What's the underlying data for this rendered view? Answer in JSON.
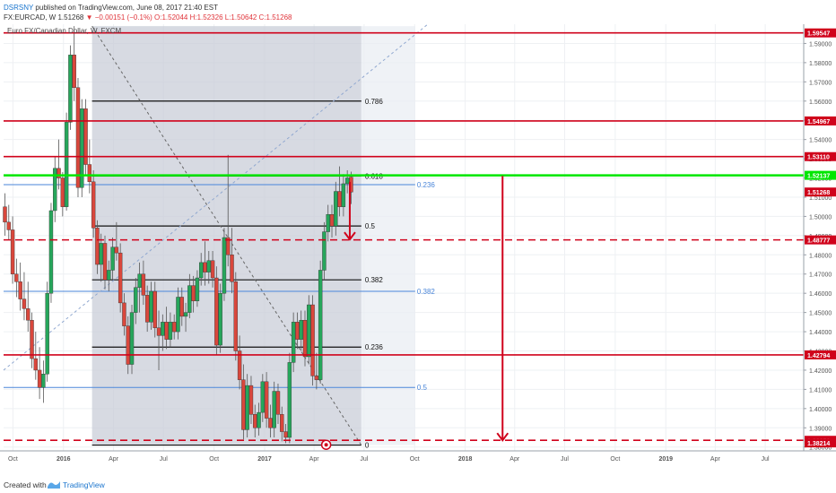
{
  "header": {
    "author": "DSRSNY",
    "published": " published on TradingView.com, June 08, 2017 21:40 EST",
    "symbol": "FX:EURCAD, W",
    "last": " 1.51268",
    "change": " −0.00151 (−0.1%)",
    "ohlc": " O:1.52044 H:1.52326 L:1.50642 C:1.51268"
  },
  "footer": {
    "created_with": "Created with",
    "brand": "TradingView"
  },
  "chart_data": {
    "type": "candlestick",
    "title": "Euro FX/Canadian Dollar, W, FXCM",
    "timeframe": "W",
    "x_range": [
      "2015-09-14",
      "2019-09-09"
    ],
    "ylim": [
      1.378,
      1.6
    ],
    "y_ticks": [
      1.38,
      1.39,
      1.4,
      1.41,
      1.42,
      1.43,
      1.44,
      1.45,
      1.46,
      1.47,
      1.48,
      1.49,
      1.5,
      1.51,
      1.52,
      1.53,
      1.54,
      1.55,
      1.56,
      1.57,
      1.58,
      1.59
    ],
    "x_ticks": [
      {
        "date": "2015-10-01",
        "label": "Oct",
        "bold": false
      },
      {
        "date": "2016-01-01",
        "label": "2016",
        "bold": true
      },
      {
        "date": "2016-04-01",
        "label": "Apr",
        "bold": false
      },
      {
        "date": "2016-07-01",
        "label": "Jul",
        "bold": false
      },
      {
        "date": "2016-10-01",
        "label": "Oct",
        "bold": false
      },
      {
        "date": "2017-01-01",
        "label": "2017",
        "bold": true
      },
      {
        "date": "2017-04-01",
        "label": "Apr",
        "bold": false
      },
      {
        "date": "2017-07-01",
        "label": "Jul",
        "bold": false
      },
      {
        "date": "2017-10-01",
        "label": "Oct",
        "bold": false
      },
      {
        "date": "2018-01-01",
        "label": "2018",
        "bold": true
      },
      {
        "date": "2018-04-01",
        "label": "Apr",
        "bold": false
      },
      {
        "date": "2018-07-01",
        "label": "Jul",
        "bold": false
      },
      {
        "date": "2018-10-01",
        "label": "Oct",
        "bold": false
      },
      {
        "date": "2019-01-01",
        "label": "2019",
        "bold": true
      },
      {
        "date": "2019-04-01",
        "label": "Apr",
        "bold": false
      },
      {
        "date": "2019-07-01",
        "label": "Jul",
        "bold": false
      }
    ],
    "price_lines": [
      {
        "price": 1.59547,
        "label": "1.59547",
        "color": "#d0021b",
        "style": "solid",
        "x_from": "2015-09-14"
      },
      {
        "price": 1.54967,
        "label": "1.54967",
        "color": "#d0021b",
        "style": "solid",
        "x_from": "2015-09-14"
      },
      {
        "price": 1.5311,
        "label": "1.53110",
        "color": "#d0021b",
        "style": "solid",
        "x_from": "2015-09-14"
      },
      {
        "price": 1.52137,
        "label": "1.52137",
        "color": "#00e600",
        "style": "solid",
        "x_from": "2015-09-14"
      },
      {
        "price": 1.48777,
        "label": "1.48777",
        "color": "#d0021b",
        "style": "dashed",
        "x_from": "2015-09-14"
      },
      {
        "price": 1.42794,
        "label": "1.42794",
        "color": "#d0021b",
        "style": "solid",
        "x_from": "2015-09-14"
      },
      {
        "price": 1.3835,
        "label": "1.38350",
        "color": "#d0021b",
        "style": "dashed",
        "x_from": "2015-09-14"
      }
    ],
    "price_labels": [
      {
        "price": 1.51268,
        "label": "1.51268",
        "color": "#d0021b"
      },
      {
        "price": 1.38214,
        "label": "1.38214",
        "color": "#d0021b"
      }
    ],
    "fib_black": {
      "start": "2016-02-22",
      "end": "2017-06-26",
      "levels": [
        {
          "price": 1.56,
          "label": "0.786"
        },
        {
          "price": 1.521,
          "label": "0.618"
        },
        {
          "price": 1.495,
          "label": "0.5"
        },
        {
          "price": 1.467,
          "label": "0.382"
        },
        {
          "price": 1.432,
          "label": "0.236"
        },
        {
          "price": 1.381,
          "label": "0"
        }
      ]
    },
    "fib_blue": {
      "start": "2015-09-14",
      "end": "2017-10-02",
      "levels": [
        {
          "price": 1.5165,
          "label": "0.236"
        },
        {
          "price": 1.461,
          "label": "0.382"
        },
        {
          "price": 1.411,
          "label": "0.5"
        }
      ]
    },
    "shaded_regions": [
      {
        "from": "2016-02-22",
        "to": "2017-06-26",
        "ymin": 1.381,
        "ymax": 1.599,
        "color": "#c9ced8"
      },
      {
        "from": "2017-06-26",
        "to": "2017-10-02",
        "ymin": 1.381,
        "ymax": 1.599,
        "color": "#e9edf3"
      }
    ],
    "trend_lines": [
      {
        "from": [
          "2015-09-14",
          1.42
        ],
        "to": [
          "2017-10-25",
          1.6
        ],
        "color": "#90a8d0",
        "style": "dashed"
      },
      {
        "from": [
          "2016-02-22",
          1.599
        ],
        "to": [
          "2017-06-26",
          1.381
        ],
        "color": "#666666",
        "style": "dashed"
      }
    ],
    "arrows": [
      {
        "date": "2017-06-05",
        "from": 1.518,
        "to": 1.488,
        "color": "#d0021b"
      },
      {
        "date": "2018-03-10",
        "from": 1.521,
        "to": 1.3835,
        "color": "#d0021b"
      }
    ],
    "markers": [
      {
        "date": "2017-04-23",
        "price": 1.3835,
        "color": "#d0021b"
      }
    ],
    "candles": [
      {
        "date": "2015-09-14",
        "o": 1.505,
        "h": 1.512,
        "l": 1.49,
        "c": 1.497
      },
      {
        "date": "2015-09-21",
        "o": 1.497,
        "h": 1.506,
        "l": 1.488,
        "c": 1.493
      },
      {
        "date": "2015-09-28",
        "o": 1.493,
        "h": 1.5,
        "l": 1.465,
        "c": 1.47
      },
      {
        "date": "2015-10-05",
        "o": 1.47,
        "h": 1.478,
        "l": 1.458,
        "c": 1.466
      },
      {
        "date": "2015-10-12",
        "o": 1.466,
        "h": 1.476,
        "l": 1.451,
        "c": 1.457
      },
      {
        "date": "2015-10-19",
        "o": 1.457,
        "h": 1.471,
        "l": 1.446,
        "c": 1.452
      },
      {
        "date": "2015-10-26",
        "o": 1.452,
        "h": 1.466,
        "l": 1.44,
        "c": 1.446
      },
      {
        "date": "2015-11-02",
        "o": 1.446,
        "h": 1.45,
        "l": 1.421,
        "c": 1.426
      },
      {
        "date": "2015-11-09",
        "o": 1.426,
        "h": 1.44,
        "l": 1.415,
        "c": 1.42
      },
      {
        "date": "2015-11-16",
        "o": 1.42,
        "h": 1.432,
        "l": 1.405,
        "c": 1.411
      },
      {
        "date": "2015-11-23",
        "o": 1.411,
        "h": 1.425,
        "l": 1.403,
        "c": 1.418
      },
      {
        "date": "2015-11-30",
        "o": 1.418,
        "h": 1.466,
        "l": 1.414,
        "c": 1.46
      },
      {
        "date": "2015-12-07",
        "o": 1.46,
        "h": 1.507,
        "l": 1.455,
        "c": 1.503
      },
      {
        "date": "2015-12-14",
        "o": 1.503,
        "h": 1.531,
        "l": 1.497,
        "c": 1.525
      },
      {
        "date": "2015-12-21",
        "o": 1.525,
        "h": 1.54,
        "l": 1.514,
        "c": 1.52
      },
      {
        "date": "2015-12-28",
        "o": 1.52,
        "h": 1.523,
        "l": 1.5,
        "c": 1.505
      },
      {
        "date": "2016-01-04",
        "o": 1.505,
        "h": 1.554,
        "l": 1.503,
        "c": 1.549
      },
      {
        "date": "2016-01-11",
        "o": 1.549,
        "h": 1.589,
        "l": 1.545,
        "c": 1.584
      },
      {
        "date": "2016-01-18",
        "o": 1.584,
        "h": 1.599,
        "l": 1.56,
        "c": 1.567
      },
      {
        "date": "2016-01-25",
        "o": 1.567,
        "h": 1.572,
        "l": 1.51,
        "c": 1.515
      },
      {
        "date": "2016-02-01",
        "o": 1.515,
        "h": 1.561,
        "l": 1.51,
        "c": 1.556
      },
      {
        "date": "2016-02-08",
        "o": 1.556,
        "h": 1.561,
        "l": 1.521,
        "c": 1.527
      },
      {
        "date": "2016-02-15",
        "o": 1.527,
        "h": 1.54,
        "l": 1.512,
        "c": 1.518
      },
      {
        "date": "2016-02-22",
        "o": 1.518,
        "h": 1.524,
        "l": 1.489,
        "c": 1.494
      },
      {
        "date": "2016-02-29",
        "o": 1.494,
        "h": 1.498,
        "l": 1.47,
        "c": 1.475
      },
      {
        "date": "2016-03-07",
        "o": 1.475,
        "h": 1.491,
        "l": 1.466,
        "c": 1.486
      },
      {
        "date": "2016-03-14",
        "o": 1.486,
        "h": 1.49,
        "l": 1.462,
        "c": 1.467
      },
      {
        "date": "2016-03-21",
        "o": 1.467,
        "h": 1.477,
        "l": 1.461,
        "c": 1.472
      },
      {
        "date": "2016-03-28",
        "o": 1.472,
        "h": 1.489,
        "l": 1.467,
        "c": 1.484
      },
      {
        "date": "2016-04-04",
        "o": 1.484,
        "h": 1.497,
        "l": 1.477,
        "c": 1.481
      },
      {
        "date": "2016-04-11",
        "o": 1.481,
        "h": 1.486,
        "l": 1.45,
        "c": 1.455
      },
      {
        "date": "2016-04-18",
        "o": 1.455,
        "h": 1.46,
        "l": 1.438,
        "c": 1.443
      },
      {
        "date": "2016-04-25",
        "o": 1.443,
        "h": 1.448,
        "l": 1.418,
        "c": 1.423
      },
      {
        "date": "2016-05-02",
        "o": 1.423,
        "h": 1.454,
        "l": 1.418,
        "c": 1.45
      },
      {
        "date": "2016-05-09",
        "o": 1.45,
        "h": 1.468,
        "l": 1.444,
        "c": 1.463
      },
      {
        "date": "2016-05-16",
        "o": 1.463,
        "h": 1.476,
        "l": 1.45,
        "c": 1.47
      },
      {
        "date": "2016-05-23",
        "o": 1.47,
        "h": 1.477,
        "l": 1.454,
        "c": 1.459
      },
      {
        "date": "2016-05-30",
        "o": 1.459,
        "h": 1.464,
        "l": 1.44,
        "c": 1.445
      },
      {
        "date": "2016-06-06",
        "o": 1.445,
        "h": 1.466,
        "l": 1.441,
        "c": 1.461
      },
      {
        "date": "2016-06-13",
        "o": 1.461,
        "h": 1.466,
        "l": 1.437,
        "c": 1.442
      },
      {
        "date": "2016-06-20",
        "o": 1.442,
        "h": 1.451,
        "l": 1.42,
        "c": 1.438
      },
      {
        "date": "2016-06-27",
        "o": 1.438,
        "h": 1.449,
        "l": 1.43,
        "c": 1.445
      },
      {
        "date": "2016-07-04",
        "o": 1.445,
        "h": 1.453,
        "l": 1.431,
        "c": 1.436
      },
      {
        "date": "2016-07-11",
        "o": 1.436,
        "h": 1.45,
        "l": 1.432,
        "c": 1.445
      },
      {
        "date": "2016-07-18",
        "o": 1.445,
        "h": 1.449,
        "l": 1.436,
        "c": 1.44
      },
      {
        "date": "2016-07-25",
        "o": 1.44,
        "h": 1.463,
        "l": 1.436,
        "c": 1.458
      },
      {
        "date": "2016-08-01",
        "o": 1.458,
        "h": 1.463,
        "l": 1.443,
        "c": 1.448
      },
      {
        "date": "2016-08-08",
        "o": 1.448,
        "h": 1.455,
        "l": 1.44,
        "c": 1.45
      },
      {
        "date": "2016-08-15",
        "o": 1.45,
        "h": 1.47,
        "l": 1.447,
        "c": 1.464
      },
      {
        "date": "2016-08-22",
        "o": 1.464,
        "h": 1.469,
        "l": 1.45,
        "c": 1.456
      },
      {
        "date": "2016-08-29",
        "o": 1.456,
        "h": 1.472,
        "l": 1.453,
        "c": 1.468
      },
      {
        "date": "2016-09-05",
        "o": 1.468,
        "h": 1.481,
        "l": 1.464,
        "c": 1.476
      },
      {
        "date": "2016-09-12",
        "o": 1.476,
        "h": 1.487,
        "l": 1.464,
        "c": 1.471
      },
      {
        "date": "2016-09-19",
        "o": 1.471,
        "h": 1.482,
        "l": 1.465,
        "c": 1.477
      },
      {
        "date": "2016-09-26",
        "o": 1.477,
        "h": 1.482,
        "l": 1.463,
        "c": 1.468
      },
      {
        "date": "2016-10-03",
        "o": 1.468,
        "h": 1.474,
        "l": 1.428,
        "c": 1.433
      },
      {
        "date": "2016-10-10",
        "o": 1.433,
        "h": 1.465,
        "l": 1.429,
        "c": 1.46
      },
      {
        "date": "2016-10-17",
        "o": 1.46,
        "h": 1.494,
        "l": 1.456,
        "c": 1.489
      },
      {
        "date": "2016-10-24",
        "o": 1.489,
        "h": 1.532,
        "l": 1.474,
        "c": 1.48
      },
      {
        "date": "2016-10-31",
        "o": 1.48,
        "h": 1.494,
        "l": 1.46,
        "c": 1.466
      },
      {
        "date": "2016-11-07",
        "o": 1.466,
        "h": 1.471,
        "l": 1.425,
        "c": 1.43
      },
      {
        "date": "2016-11-14",
        "o": 1.43,
        "h": 1.438,
        "l": 1.41,
        "c": 1.415
      },
      {
        "date": "2016-11-21",
        "o": 1.415,
        "h": 1.423,
        "l": 1.384,
        "c": 1.389
      },
      {
        "date": "2016-11-28",
        "o": 1.389,
        "h": 1.418,
        "l": 1.385,
        "c": 1.412
      },
      {
        "date": "2016-12-05",
        "o": 1.412,
        "h": 1.417,
        "l": 1.392,
        "c": 1.397
      },
      {
        "date": "2016-12-12",
        "o": 1.397,
        "h": 1.402,
        "l": 1.385,
        "c": 1.39
      },
      {
        "date": "2016-12-19",
        "o": 1.39,
        "h": 1.403,
        "l": 1.386,
        "c": 1.398
      },
      {
        "date": "2016-12-26",
        "o": 1.398,
        "h": 1.418,
        "l": 1.393,
        "c": 1.414
      },
      {
        "date": "2017-01-02",
        "o": 1.414,
        "h": 1.419,
        "l": 1.39,
        "c": 1.395
      },
      {
        "date": "2017-01-09",
        "o": 1.395,
        "h": 1.402,
        "l": 1.385,
        "c": 1.39
      },
      {
        "date": "2017-01-16",
        "o": 1.39,
        "h": 1.414,
        "l": 1.385,
        "c": 1.409
      },
      {
        "date": "2017-01-23",
        "o": 1.409,
        "h": 1.413,
        "l": 1.392,
        "c": 1.397
      },
      {
        "date": "2017-01-30",
        "o": 1.397,
        "h": 1.401,
        "l": 1.383,
        "c": 1.388
      },
      {
        "date": "2017-02-06",
        "o": 1.388,
        "h": 1.392,
        "l": 1.382,
        "c": 1.385
      },
      {
        "date": "2017-02-13",
        "o": 1.385,
        "h": 1.429,
        "l": 1.382,
        "c": 1.424
      },
      {
        "date": "2017-02-20",
        "o": 1.424,
        "h": 1.45,
        "l": 1.419,
        "c": 1.445
      },
      {
        "date": "2017-02-27",
        "o": 1.445,
        "h": 1.45,
        "l": 1.431,
        "c": 1.436
      },
      {
        "date": "2017-03-06",
        "o": 1.436,
        "h": 1.451,
        "l": 1.43,
        "c": 1.446
      },
      {
        "date": "2017-03-13",
        "o": 1.446,
        "h": 1.451,
        "l": 1.422,
        "c": 1.427
      },
      {
        "date": "2017-03-20",
        "o": 1.427,
        "h": 1.459,
        "l": 1.423,
        "c": 1.454
      },
      {
        "date": "2017-03-27",
        "o": 1.454,
        "h": 1.459,
        "l": 1.412,
        "c": 1.417
      },
      {
        "date": "2017-04-03",
        "o": 1.417,
        "h": 1.429,
        "l": 1.41,
        "c": 1.415
      },
      {
        "date": "2017-04-10",
        "o": 1.415,
        "h": 1.477,
        "l": 1.413,
        "c": 1.472
      },
      {
        "date": "2017-04-17",
        "o": 1.472,
        "h": 1.497,
        "l": 1.467,
        "c": 1.492
      },
      {
        "date": "2017-04-24",
        "o": 1.492,
        "h": 1.506,
        "l": 1.487,
        "c": 1.501
      },
      {
        "date": "2017-05-01",
        "o": 1.501,
        "h": 1.506,
        "l": 1.489,
        "c": 1.495
      },
      {
        "date": "2017-05-08",
        "o": 1.495,
        "h": 1.518,
        "l": 1.49,
        "c": 1.513
      },
      {
        "date": "2017-05-15",
        "o": 1.513,
        "h": 1.526,
        "l": 1.5,
        "c": 1.505
      },
      {
        "date": "2017-05-22",
        "o": 1.505,
        "h": 1.522,
        "l": 1.5,
        "c": 1.517
      },
      {
        "date": "2017-05-29",
        "o": 1.517,
        "h": 1.524,
        "l": 1.512,
        "c": 1.52
      },
      {
        "date": "2017-06-05",
        "o": 1.52044,
        "h": 1.52326,
        "l": 1.50642,
        "c": 1.51268
      }
    ]
  }
}
